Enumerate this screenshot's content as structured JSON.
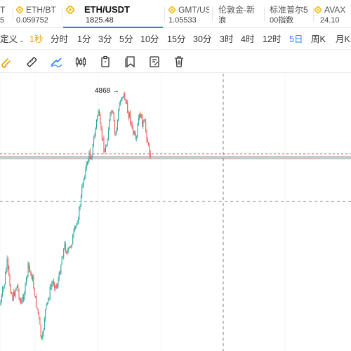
{
  "tickers": [
    {
      "name": "T",
      "price": "5"
    },
    {
      "name": "ETH/BT",
      "price": "0.059752"
    },
    {
      "name": "ETH/USDT",
      "price": "1825.48"
    },
    {
      "name": "GMT/US",
      "price": "1.05533"
    },
    {
      "name": "伦敦金-新",
      "price": "浪"
    },
    {
      "name": "标准普尔5",
      "price": "00指数"
    },
    {
      "name": "AVAX",
      "price": "24.10"
    }
  ],
  "intervals": {
    "custom": "定义",
    "one_sec": "1秒",
    "time_share": "分时",
    "m1": "1分",
    "m3": "3分",
    "m5": "5分",
    "m10": "10分",
    "m15": "15分",
    "m30": "30分",
    "h3": "3时",
    "h4": "4时",
    "h12": "12时",
    "d5": "5日",
    "week": "周K",
    "month": "月K"
  },
  "tools": [
    "magnet-icon",
    "ruler-icon",
    "draw-line-icon",
    "candlestick-icon",
    "clipboard-icon",
    "bookmark-icon",
    "note-icon",
    "trash-icon"
  ],
  "colors": {
    "accent": "#2f7bf5",
    "up": "#26a69a",
    "down": "#ef5350",
    "orange": "#f0a000",
    "binance": "#f0b90b"
  },
  "chart": {
    "high_label": "4868 →"
  }
}
